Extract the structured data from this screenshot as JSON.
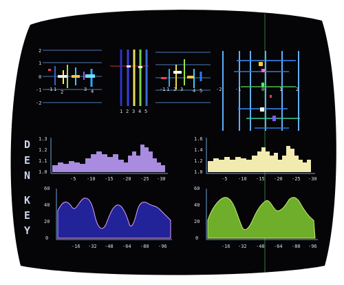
{
  "photo": {
    "subject": "CRT monitor screen displaying graphics",
    "colors": {
      "bezel": "#ffffff",
      "screen": "#050406",
      "axis": "#6fa3d8",
      "violet": "#b98ad8",
      "cream": "#f3edb4",
      "navy": "#23249a",
      "lime": "#7ab82a"
    }
  },
  "side_labels": {
    "upper": [
      "D",
      "E",
      "N"
    ],
    "lower": [
      "K",
      "E",
      "Y"
    ]
  },
  "upper_charts": {
    "y_ticks": [
      "1.3",
      "1.2",
      "1.1",
      "1.0"
    ],
    "right_y_ticks": [
      "1.6",
      "1.4",
      "1.2",
      "1.0"
    ],
    "x_ticks": [
      "-5",
      "-10",
      "-15",
      "-20",
      "-25",
      "-30"
    ]
  },
  "lower_charts": {
    "y_ticks": [
      "60",
      "40",
      "20",
      "0"
    ],
    "x_ticks": [
      "-16",
      "-32",
      "-48",
      "-64",
      "-80",
      "-96"
    ]
  },
  "diagrams": {
    "left_y_ticks": [
      "2",
      "1",
      "0",
      "-1",
      "-2"
    ],
    "left_x_ticks": [
      "-1",
      "1",
      "2",
      "3",
      "4"
    ],
    "bar_numbers": [
      "1",
      "2",
      "3",
      "4",
      "5"
    ],
    "mid_x_ticks": [
      "-1",
      "1",
      "2",
      "3",
      "4",
      "5"
    ],
    "right_x_ticks": [
      "-2",
      "-1",
      "0",
      "1",
      "2"
    ]
  }
}
